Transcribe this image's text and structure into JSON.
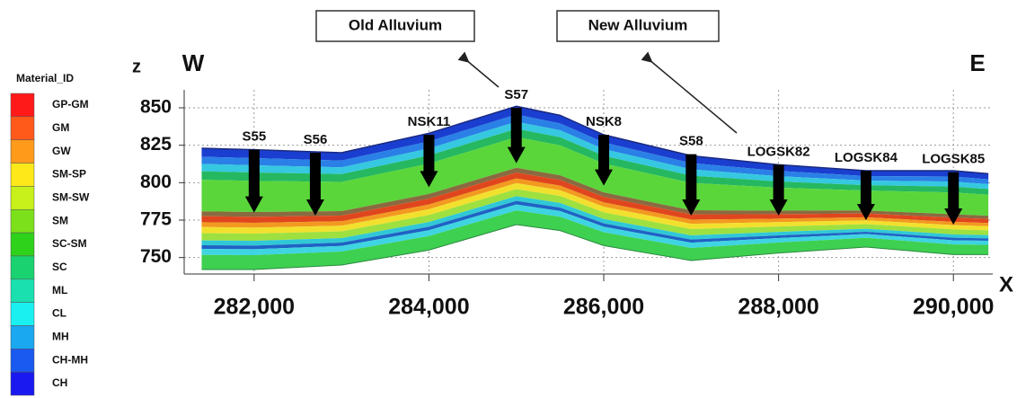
{
  "chart_data": {
    "type": "cross-section",
    "legend_title": "Material_ID",
    "legend": [
      {
        "name": "GP-GM",
        "color": "#ff1a1a"
      },
      {
        "name": "GM",
        "color": "#ff5a1a"
      },
      {
        "name": "GW",
        "color": "#ff9a1a"
      },
      {
        "name": "SM-SP",
        "color": "#ffe81a"
      },
      {
        "name": "SM-SW",
        "color": "#c8f01a"
      },
      {
        "name": "SM",
        "color": "#7ce01a"
      },
      {
        "name": "SC-SM",
        "color": "#2ed21a"
      },
      {
        "name": "SC",
        "color": "#1ad270"
      },
      {
        "name": "ML",
        "color": "#1ae0b0"
      },
      {
        "name": "CL",
        "color": "#1af0f0"
      },
      {
        "name": "MH",
        "color": "#1aa8f0"
      },
      {
        "name": "CH-MH",
        "color": "#1a5af0"
      },
      {
        "name": "CH",
        "color": "#1a1af0"
      }
    ],
    "y_label": "z",
    "x_label": "X",
    "west_label": "W",
    "east_label": "E",
    "annotations": [
      "Old Alluvium",
      "New Alluvium"
    ],
    "xlim": [
      281200,
      290450
    ],
    "ylim": [
      739,
      862
    ],
    "xticks": [
      {
        "value": 282000,
        "label": "282,000"
      },
      {
        "value": 284000,
        "label": "284,000"
      },
      {
        "value": 286000,
        "label": "286,000"
      },
      {
        "value": 288000,
        "label": "288,000"
      },
      {
        "value": 290000,
        "label": "290,000"
      }
    ],
    "yticks": [
      750,
      775,
      800,
      825,
      850
    ],
    "grid": true,
    "profile": {
      "x": [
        281400,
        282000,
        283000,
        284000,
        285000,
        285500,
        286000,
        287000,
        288000,
        289000,
        290000,
        290400
      ],
      "top": [
        823,
        822,
        820,
        833,
        851,
        845,
        832,
        818,
        812,
        808,
        808,
        806
      ],
      "bottom": [
        742,
        742,
        745,
        755,
        772,
        768,
        758,
        748,
        753,
        757,
        752,
        752
      ]
    },
    "boreholes": [
      {
        "name": "S55",
        "x": 282000,
        "top": 822,
        "bottom": 780
      },
      {
        "name": "S56",
        "x": 282700,
        "top": 820,
        "bottom": 778
      },
      {
        "name": "NSK11",
        "x": 284000,
        "top": 832,
        "bottom": 797
      },
      {
        "name": "S57",
        "x": 285000,
        "top": 850,
        "bottom": 813
      },
      {
        "name": "NSK8",
        "x": 286000,
        "top": 832,
        "bottom": 798
      },
      {
        "name": "S58",
        "x": 287000,
        "top": 819,
        "bottom": 778
      },
      {
        "name": "LOGSK82",
        "x": 288000,
        "top": 812,
        "bottom": 778
      },
      {
        "name": "LOGSK84",
        "x": 289000,
        "top": 808,
        "bottom": 775
      },
      {
        "name": "LOGSK85",
        "x": 290000,
        "top": 807,
        "bottom": 772
      }
    ]
  }
}
